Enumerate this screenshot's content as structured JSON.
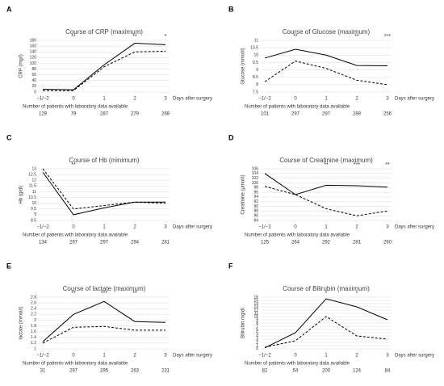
{
  "chart_data": [
    {
      "type": "line",
      "panel": "A",
      "title": "Course of CRP (maximum)",
      "y_label": "CRP (mg/l)",
      "x_label": "Days after surgery",
      "categories": [
        "−1/−2",
        "0",
        "1",
        "2",
        "3"
      ],
      "series": [
        {
          "color": "#000000",
          "dash": "solid",
          "values": [
            10,
            8,
            95,
            170,
            165
          ]
        },
        {
          "color": "#000000",
          "dash": "dashed",
          "values": [
            5,
            5,
            88,
            140,
            142
          ]
        }
      ],
      "ylim": [
        0,
        180
      ],
      "yticks": [
        0,
        20,
        40,
        60,
        80,
        100,
        120,
        140,
        160,
        180
      ],
      "grid": true,
      "annotations": [
        {
          "label": "**",
          "category": "0"
        },
        {
          "label": "**",
          "category": "2"
        },
        {
          "label": "*",
          "category": "3"
        }
      ],
      "patients": {
        "label": "Number of patients with laboratory data available",
        "values": [
          129,
          79,
          287,
          279,
          268
        ]
      }
    },
    {
      "type": "line",
      "panel": "B",
      "title": "Course of Glucose (maximum)",
      "y_label": "Glucose (mmol/l)",
      "x_label": "Days after surgery",
      "categories": [
        "−1/−2",
        "0",
        "1",
        "2",
        "3"
      ],
      "series": [
        {
          "color": "#000000",
          "dash": "solid",
          "values": [
            9.8,
            10.4,
            10,
            9.3,
            9.28
          ]
        },
        {
          "color": "#000000",
          "dash": "dashed",
          "values": [
            8.2,
            9.6,
            9.1,
            8.3,
            8
          ]
        }
      ],
      "ylim": [
        7.5,
        11
      ],
      "yticks": [
        7.5,
        8,
        8.5,
        9,
        9.5,
        10,
        10.5,
        11
      ],
      "grid": true,
      "annotations": [
        {
          "label": "**",
          "category": "0"
        },
        {
          "label": "**",
          "category": "2"
        },
        {
          "label": "***",
          "category": "3"
        }
      ],
      "patients": {
        "label": "Number of patients with laboratory data available",
        "values": [
          101,
          297,
          297,
          288,
          256
        ]
      }
    },
    {
      "type": "line",
      "panel": "C",
      "title": "Course of Hb (minimum)",
      "y_label": "Hb (g/dl)",
      "x_label": "Days after surgery",
      "categories": [
        "−1/−2",
        "0",
        "1",
        "2",
        "3"
      ],
      "series": [
        {
          "color": "#000000",
          "dash": "solid",
          "values": [
            12.7,
            9,
            9.6,
            10.1,
            10.1
          ]
        },
        {
          "color": "#000000",
          "dash": "dashed",
          "values": [
            13,
            9.5,
            9.8,
            10.1,
            10
          ]
        }
      ],
      "ylim": [
        8.5,
        13
      ],
      "yticks": [
        8.5,
        9,
        9.5,
        10,
        10.5,
        11,
        11.5,
        12,
        12.5,
        13
      ],
      "grid": true,
      "annotations": [
        {
          "label": "**",
          "category": "0"
        }
      ],
      "patients": {
        "label": "Number of patients with laboratory data available",
        "values": [
          134,
          297,
          297,
          294,
          281
        ]
      }
    },
    {
      "type": "line",
      "panel": "D",
      "title": "Course of Creatinine (maximum)",
      "y_label": "Creatinine (μmol/l)",
      "x_label": "Days after surgery",
      "categories": [
        "−1/−2",
        "0",
        "1",
        "2",
        "3"
      ],
      "series": [
        {
          "color": "#000000",
          "dash": "solid",
          "values": [
            104,
            95,
            99,
            98.8,
            98.2
          ]
        },
        {
          "color": "#000000",
          "dash": "dashed",
          "values": [
            98.5,
            95,
            89,
            86,
            88
          ]
        }
      ],
      "ylim": [
        84,
        106
      ],
      "yticks": [
        84,
        86,
        88,
        90,
        92,
        94,
        96,
        98,
        100,
        102,
        104,
        106
      ],
      "grid": true,
      "annotations": [
        {
          "label": "**",
          "category": "1"
        },
        {
          "label": "***",
          "category": "2"
        },
        {
          "label": "**",
          "category": "3"
        }
      ],
      "patients": {
        "label": "Number of patients with laboratory data available",
        "values": [
          125,
          264,
          292,
          281,
          260
        ]
      }
    },
    {
      "type": "line",
      "panel": "E",
      "title": "Course of lactate (maximum)",
      "y_label": "lactate (mmol/l)",
      "x_label": "Days after surgery",
      "categories": [
        "−1/−2",
        "0",
        "1",
        "2",
        "3"
      ],
      "series": [
        {
          "color": "#000000",
          "dash": "solid",
          "values": [
            1.25,
            2.2,
            2.65,
            1.95,
            1.92
          ]
        },
        {
          "color": "#000000",
          "dash": "dashed",
          "values": [
            1.2,
            1.75,
            1.78,
            1.65,
            1.65
          ]
        }
      ],
      "ylim": [
        1,
        2.8
      ],
      "yticks": [
        1,
        1.2,
        1.4,
        1.6,
        1.8,
        2,
        2.2,
        2.4,
        2.6,
        2.8
      ],
      "grid": true,
      "annotations": [
        {
          "label": "**",
          "category": "0"
        },
        {
          "label": "***",
          "category": "1"
        },
        {
          "label": "**",
          "category": "2"
        }
      ],
      "patients": {
        "label": "Number of patients with laboratory data available",
        "values": [
          31,
          297,
          295,
          263,
          231
        ]
      }
    },
    {
      "type": "line",
      "panel": "F",
      "title": "Course of Bilirubin (maximum)",
      "y_label": "Bilirubin mg/dl",
      "x_label": "Days after surgery",
      "categories": [
        "−1/−2",
        "0",
        "1",
        "2",
        "3"
      ],
      "series": [
        {
          "color": "#000000",
          "dash": "solid",
          "values": [
            0.3,
            5,
            15.5,
            13,
            9
          ]
        },
        {
          "color": "#000000",
          "dash": "dashed",
          "values": [
            0.5,
            2.5,
            10,
            4,
            3
          ]
        }
      ],
      "ylim": [
        0,
        16
      ],
      "yticks": [
        0,
        1,
        2,
        3,
        4,
        5,
        6,
        7,
        8,
        9,
        10,
        11,
        12,
        13,
        14,
        15,
        16
      ],
      "grid": true,
      "annotations": [
        {
          "label": "*",
          "category": "1"
        },
        {
          "label": "*",
          "category": "2"
        }
      ],
      "patients": {
        "label": "Number of patients with laboratory data available",
        "values": [
          82,
          54,
          200,
          124,
          84
        ]
      }
    }
  ]
}
